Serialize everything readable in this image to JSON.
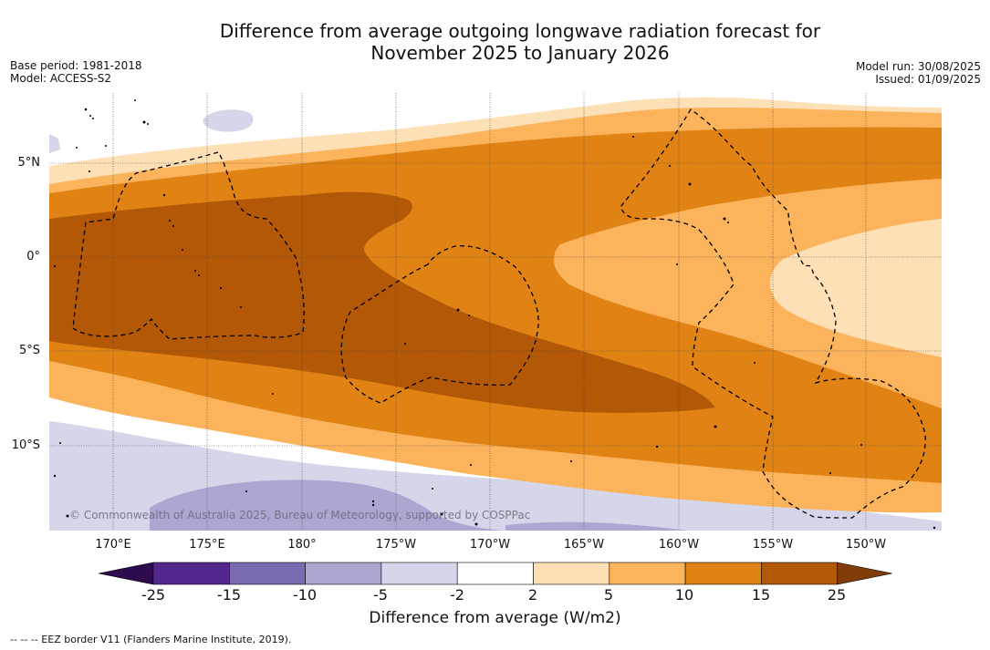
{
  "title": {
    "line1": "Difference from average outgoing longwave radiation forecast for",
    "line2": "November 2025 to January 2026"
  },
  "meta": {
    "base_period": "Base period: 1981-2018",
    "model": "Model: ACCESS-S2",
    "model_run": "Model run: 30/08/2025",
    "issued": "Issued: 01/09/2025"
  },
  "map": {
    "latitude_labels": [
      "5°N",
      "0°",
      "5°S",
      "10°S"
    ],
    "longitude_labels": [
      "170°E",
      "175°E",
      "180°",
      "175°W",
      "170°W",
      "165°W",
      "160°W",
      "155°W",
      "150°W"
    ],
    "copyright": "© Commonwealth of Australia 2025, Bureau of Meteorology, supported by COSPPac"
  },
  "colorbar": {
    "tick_labels": [
      "-25",
      "-15",
      "-10",
      "-5",
      "-2",
      "2",
      "5",
      "10",
      "15",
      "25"
    ],
    "colors": [
      "#2e0a4f",
      "#54278f",
      "#7b6ab0",
      "#ada6d1",
      "#d6d6ea",
      "#ffffff",
      "#fde0b6",
      "#fbb35c",
      "#e08214",
      "#b35806",
      "#7f3b08"
    ],
    "title": "Difference from average (W/m2)"
  },
  "footnote": "--  --  -- EEZ border V11 (Flanders Marine Institute, 2019)."
}
